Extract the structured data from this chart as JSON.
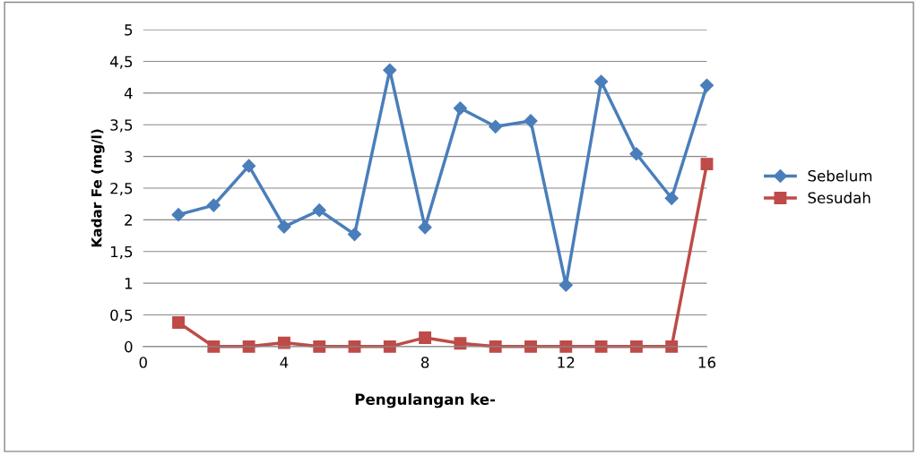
{
  "chart_data": {
    "type": "line",
    "xlabel": "Pengulangan ke-",
    "ylabel": "Kadar Fe (mg/l)",
    "x": [
      1,
      2,
      3,
      4,
      5,
      6,
      7,
      8,
      9,
      10,
      11,
      12,
      13,
      14,
      15,
      16
    ],
    "series": [
      {
        "name": "Sebelum",
        "color": "#4a7ebb",
        "marker": "diamond",
        "values": [
          2.08,
          2.23,
          2.85,
          1.89,
          2.15,
          1.77,
          4.36,
          1.88,
          3.76,
          3.47,
          3.56,
          0.97,
          4.18,
          3.04,
          2.34,
          4.12
        ]
      },
      {
        "name": "Sesudah",
        "color": "#be4b48",
        "marker": "square",
        "values": [
          0.38,
          0,
          0,
          0.06,
          0,
          0,
          0,
          0.14,
          0.05,
          0,
          0,
          0,
          0,
          0,
          0,
          2.88
        ]
      }
    ],
    "xlim": [
      0,
      16
    ],
    "xticks": [
      0,
      4,
      8,
      12,
      16
    ],
    "ylim": [
      0,
      5
    ],
    "yticks": [
      0,
      {
        "value": 0.5,
        "label": "0,5"
      },
      1,
      {
        "value": 1.5,
        "label": "1,5"
      },
      2,
      {
        "value": 2.5,
        "label": "2,5"
      },
      3,
      {
        "value": 3.5,
        "label": "3,5"
      },
      4,
      {
        "value": 4.5,
        "label": "4,5"
      },
      5
    ],
    "grid": "y",
    "legend": "right",
    "line_style": "solid"
  }
}
